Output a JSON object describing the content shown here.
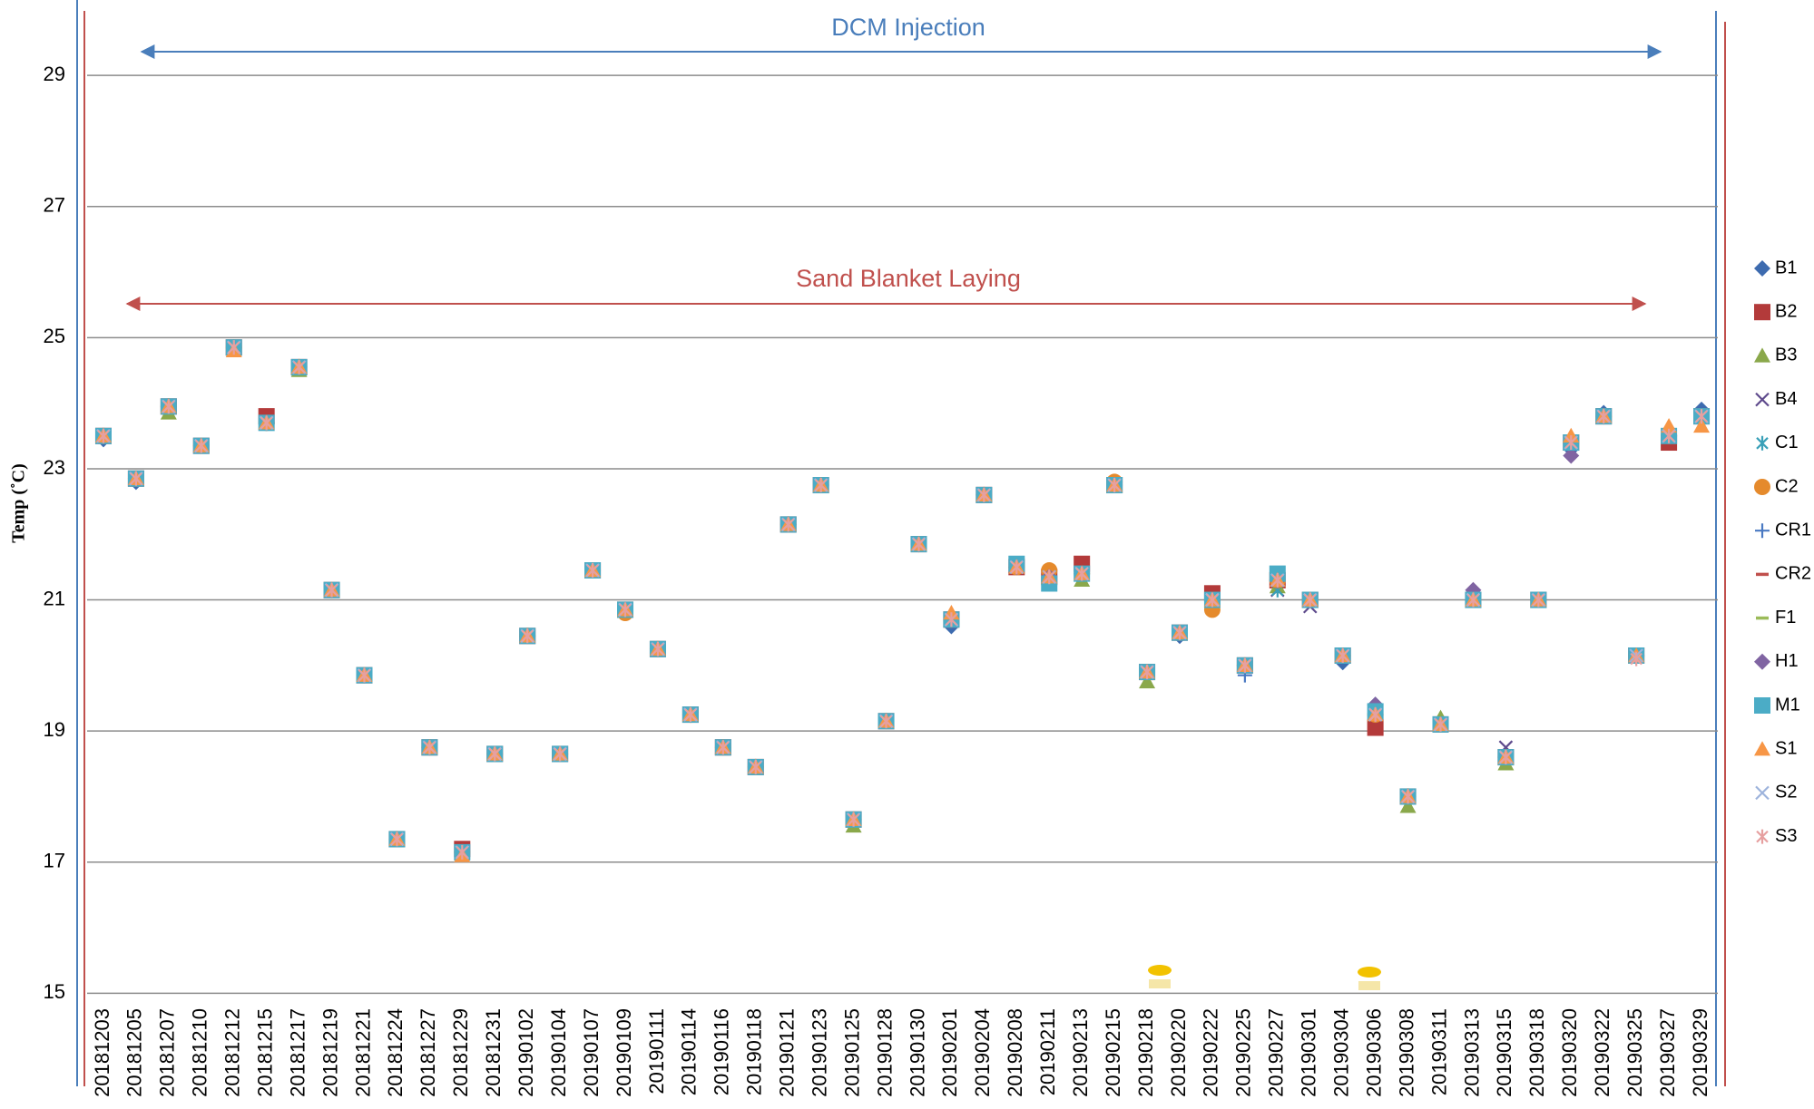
{
  "chart_data": {
    "type": "scatter",
    "y_label": "Temp (˚C)",
    "annotations": [
      {
        "text": "DCM Injection",
        "color": "#4a7ebb"
      },
      {
        "text": "Sand Blanket Laying",
        "color": "#c0504d"
      }
    ],
    "categories": [
      "20181203",
      "20181205",
      "20181207",
      "20181210",
      "20181212",
      "20181215",
      "20181217",
      "20181219",
      "20181221",
      "20181224",
      "20181227",
      "20181229",
      "20181231",
      "20190102",
      "20190104",
      "20190107",
      "20190109",
      "20190111",
      "20190114",
      "20190116",
      "20190118",
      "20190121",
      "20190123",
      "20190125",
      "20190128",
      "20190130",
      "20190201",
      "20190204",
      "20190208",
      "20190211",
      "20190213",
      "20190215",
      "20190218",
      "20190220",
      "20190222",
      "20190225",
      "20190227",
      "20190301",
      "20190304",
      "20190306",
      "20190308",
      "20190311",
      "20190313",
      "20190315",
      "20190318",
      "20190320",
      "20190322",
      "20190325",
      "20190327",
      "20190329"
    ],
    "ylim": [
      13.58,
      30.15
    ],
    "yticks": [
      15,
      17,
      19,
      21,
      23,
      25,
      27,
      29
    ],
    "grid": true,
    "legend": "right",
    "series": [
      {
        "name": "B1",
        "color": "#3d6baf",
        "marker": "diamond",
        "values": [
          23.45,
          22.8,
          23.95,
          23.35,
          24.85,
          23.7,
          24.55,
          21.15,
          19.85,
          17.35,
          18.75,
          17.15,
          18.65,
          20.45,
          18.65,
          21.45,
          20.85,
          20.25,
          19.25,
          18.75,
          18.45,
          22.15,
          22.75,
          17.65,
          19.15,
          21.85,
          20.6,
          22.6,
          21.5,
          21.35,
          21.4,
          22.75,
          19.9,
          20.45,
          21,
          20,
          21.3,
          21,
          20.05,
          19.4,
          18,
          19.1,
          21,
          18.6,
          21,
          23.3,
          23.85,
          20.15,
          23.5,
          23.9
        ]
      },
      {
        "name": "B2",
        "color": "#b33a3a",
        "marker": "square",
        "values": [
          23.5,
          22.85,
          23.95,
          23.35,
          24.85,
          23.8,
          24.55,
          21.15,
          19.85,
          17.35,
          18.75,
          17.2,
          18.65,
          20.45,
          18.65,
          21.45,
          20.85,
          20.25,
          19.25,
          18.75,
          18.45,
          22.15,
          22.75,
          17.65,
          19.15,
          21.85,
          20.7,
          22.6,
          21.5,
          21.35,
          21.55,
          22.75,
          19.9,
          20.5,
          21.1,
          20,
          21.3,
          21,
          20.15,
          19.05,
          18,
          19.1,
          21,
          18.6,
          21,
          23.4,
          23.8,
          20.15,
          23.4,
          23.8
        ]
      },
      {
        "name": "B3",
        "color": "#8aa84b",
        "marker": "triangle",
        "values": [
          23.5,
          22.85,
          23.85,
          23.35,
          24.85,
          23.7,
          24.5,
          21.15,
          19.85,
          17.35,
          18.75,
          17.15,
          18.65,
          20.45,
          18.65,
          21.45,
          20.85,
          20.25,
          19.25,
          18.75,
          18.45,
          22.15,
          22.75,
          17.55,
          19.15,
          21.85,
          20.7,
          22.6,
          21.5,
          21.35,
          21.3,
          22.75,
          19.75,
          20.5,
          21,
          20,
          21.2,
          21,
          20.15,
          19.25,
          17.85,
          19.2,
          21,
          18.5,
          21,
          23.4,
          23.8,
          20.15,
          23.5,
          23.8
        ]
      },
      {
        "name": "B4",
        "color": "#5e4a8c",
        "marker": "x",
        "values": [
          23.5,
          22.85,
          23.95,
          23.35,
          24.85,
          23.7,
          24.55,
          21.15,
          19.85,
          17.35,
          18.75,
          17.15,
          18.65,
          20.45,
          18.65,
          21.45,
          20.85,
          20.25,
          19.25,
          18.75,
          18.45,
          22.15,
          22.75,
          17.65,
          19.15,
          21.85,
          20.7,
          22.6,
          21.5,
          21.35,
          21.4,
          22.75,
          19.9,
          20.5,
          21,
          20,
          21.15,
          20.9,
          20.15,
          19.25,
          18,
          19.1,
          21,
          18.75,
          21,
          23.4,
          23.8,
          20.15,
          23.5,
          23.8
        ]
      },
      {
        "name": "C1",
        "color": "#3aa0b8",
        "marker": "asterisk",
        "values": [
          23.5,
          22.85,
          23.95,
          23.35,
          24.85,
          23.7,
          24.55,
          21.15,
          19.85,
          17.35,
          18.75,
          17.15,
          18.65,
          20.45,
          18.65,
          21.45,
          20.85,
          20.25,
          19.25,
          18.75,
          18.45,
          22.15,
          22.75,
          17.65,
          19.15,
          21.85,
          20.7,
          22.6,
          21.5,
          21.35,
          21.4,
          22.75,
          19.9,
          20.5,
          21,
          20,
          21.15,
          21,
          20.15,
          19.25,
          18,
          19.1,
          21,
          18.6,
          21,
          23.4,
          23.8,
          20.15,
          23.5,
          23.8
        ]
      },
      {
        "name": "C2",
        "color": "#e58a2c",
        "marker": "circle",
        "values": [
          23.5,
          22.85,
          23.95,
          23.35,
          24.85,
          23.7,
          24.55,
          21.15,
          19.85,
          17.35,
          18.75,
          17.15,
          18.65,
          20.45,
          18.65,
          21.45,
          20.8,
          20.25,
          19.25,
          18.75,
          18.45,
          22.15,
          22.75,
          17.65,
          19.15,
          21.85,
          20.7,
          22.6,
          21.5,
          21.45,
          21.4,
          22.8,
          19.9,
          20.5,
          20.85,
          20,
          21.3,
          21,
          20.15,
          19.25,
          18,
          19.1,
          21,
          18.6,
          21,
          23.4,
          23.8,
          20.15,
          23.5,
          23.8
        ]
      },
      {
        "name": "CR1",
        "color": "#4a79c2",
        "marker": "plus",
        "values": [
          23.5,
          22.85,
          23.95,
          23.35,
          24.85,
          23.7,
          24.55,
          21.15,
          19.85,
          17.35,
          18.75,
          17.15,
          18.65,
          20.45,
          18.65,
          21.45,
          20.85,
          20.25,
          19.25,
          18.75,
          18.45,
          22.15,
          22.75,
          17.65,
          19.15,
          21.85,
          20.7,
          22.6,
          21.5,
          21.35,
          21.4,
          22.75,
          19.9,
          20.5,
          21,
          19.85,
          21.3,
          21,
          20.15,
          19.25,
          18,
          19.1,
          21,
          18.6,
          21,
          23.4,
          23.8,
          20.15,
          23.5,
          23.8
        ]
      },
      {
        "name": "CR2",
        "color": "#c0504d",
        "marker": "dash",
        "values": [
          23.5,
          22.85,
          23.95,
          23.35,
          24.85,
          23.7,
          24.55,
          21.15,
          19.85,
          17.35,
          18.75,
          17.15,
          18.65,
          20.45,
          18.65,
          21.45,
          20.85,
          20.25,
          19.25,
          18.75,
          18.45,
          22.15,
          22.75,
          17.65,
          19.15,
          21.85,
          20.7,
          22.6,
          21.5,
          21.35,
          21.4,
          22.75,
          19.9,
          20.5,
          21.1,
          19.95,
          21.3,
          21,
          20.15,
          19.25,
          18,
          19.1,
          21,
          18.6,
          21,
          23.4,
          23.8,
          20.15,
          23.5,
          23.8
        ]
      },
      {
        "name": "F1",
        "color": "#9bbb59",
        "marker": "dash",
        "values": [
          23.5,
          22.85,
          23.95,
          23.35,
          24.85,
          23.7,
          24.55,
          21.15,
          19.85,
          17.35,
          18.75,
          17.15,
          18.65,
          20.45,
          18.65,
          21.45,
          20.85,
          20.25,
          19.25,
          18.75,
          18.45,
          22.15,
          22.75,
          17.65,
          19.15,
          21.85,
          20.7,
          22.6,
          21.5,
          21.35,
          21.4,
          22.75,
          19.8,
          20.5,
          21,
          20,
          21.3,
          21,
          20.15,
          19.25,
          18,
          19.15,
          21,
          18.6,
          21,
          23.4,
          23.8,
          20.15,
          23.5,
          23.8
        ]
      },
      {
        "name": "H1",
        "color": "#8064a2",
        "marker": "diamond",
        "values": [
          23.5,
          22.85,
          23.95,
          23.35,
          24.85,
          23.7,
          24.55,
          21.15,
          19.85,
          17.35,
          18.75,
          17.15,
          18.65,
          20.45,
          18.65,
          21.45,
          20.85,
          20.25,
          19.25,
          18.75,
          18.45,
          22.15,
          22.75,
          17.65,
          19.15,
          21.85,
          20.7,
          22.6,
          21.5,
          21.35,
          21.4,
          22.75,
          19.9,
          20.5,
          21,
          20,
          21.3,
          21,
          20.15,
          19.4,
          18,
          19.1,
          21.15,
          18.6,
          21,
          23.2,
          23.8,
          20.15,
          23.5,
          23.8
        ]
      },
      {
        "name": "M1",
        "color": "#4bacc6",
        "marker": "square",
        "values": [
          23.5,
          22.85,
          23.95,
          23.35,
          24.85,
          23.7,
          24.55,
          21.15,
          19.85,
          17.35,
          18.75,
          17.15,
          18.65,
          20.45,
          18.65,
          21.45,
          20.85,
          20.25,
          19.25,
          18.75,
          18.45,
          22.15,
          22.75,
          17.65,
          19.15,
          21.85,
          20.7,
          22.6,
          21.55,
          21.25,
          21.4,
          22.75,
          19.9,
          20.5,
          21,
          20,
          21.4,
          21,
          20.15,
          19.3,
          18,
          19.1,
          21,
          18.6,
          21,
          23.4,
          23.8,
          20.15,
          23.5,
          23.8
        ]
      },
      {
        "name": "S1",
        "color": "#f79646",
        "marker": "triangle",
        "values": [
          23.5,
          22.85,
          23.95,
          23.35,
          24.8,
          23.7,
          24.55,
          21.15,
          19.85,
          17.35,
          18.75,
          17.1,
          18.65,
          20.45,
          18.65,
          21.45,
          20.85,
          20.25,
          19.25,
          18.75,
          18.45,
          22.15,
          22.75,
          17.65,
          19.15,
          21.85,
          20.8,
          22.6,
          21.5,
          21.35,
          21.4,
          22.75,
          19.9,
          20.5,
          21,
          20,
          21.3,
          21,
          20.15,
          19.25,
          18,
          19.1,
          21,
          18.6,
          21,
          23.5,
          23.8,
          20.15,
          23.65,
          23.65
        ]
      },
      {
        "name": "S2",
        "color": "#9db3dc",
        "marker": "x",
        "values": [
          23.5,
          22.85,
          23.95,
          23.35,
          24.85,
          23.7,
          24.55,
          21.15,
          19.85,
          17.35,
          18.75,
          17.15,
          18.65,
          20.45,
          18.65,
          21.45,
          20.85,
          20.25,
          19.25,
          18.75,
          18.45,
          22.15,
          22.75,
          17.65,
          19.15,
          21.85,
          20.7,
          22.6,
          21.5,
          21.35,
          21.4,
          22.75,
          19.9,
          20.5,
          21,
          20,
          21.3,
          21,
          20.15,
          19.25,
          18,
          19.1,
          21,
          18.6,
          21,
          23.4,
          23.8,
          20.15,
          23.5,
          23.8
        ]
      },
      {
        "name": "S3",
        "color": "#e6a0a0",
        "marker": "asterisk",
        "values": [
          23.5,
          22.85,
          23.95,
          23.35,
          24.85,
          23.7,
          24.55,
          21.15,
          19.85,
          17.35,
          18.75,
          17.15,
          18.65,
          20.45,
          18.65,
          21.45,
          20.85,
          20.25,
          19.25,
          18.75,
          18.45,
          22.15,
          22.75,
          17.65,
          19.15,
          21.85,
          20.7,
          22.6,
          21.5,
          21.35,
          21.4,
          22.75,
          19.9,
          20.5,
          21,
          20,
          21.3,
          21,
          20.15,
          19.25,
          18,
          19.1,
          21,
          18.6,
          21,
          23.4,
          23.8,
          20.1,
          23.5,
          23.8
        ]
      }
    ]
  }
}
